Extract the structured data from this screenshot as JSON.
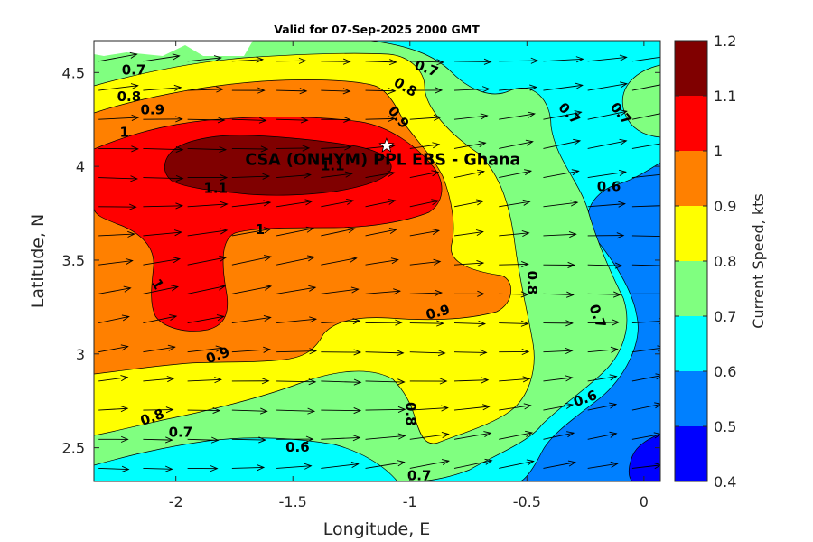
{
  "chart_data": {
    "type": "contour",
    "title": "Valid for 07-Sep-2025 2000 GMT",
    "xlabel": "Longitude, E",
    "ylabel": "Latitude, N",
    "xlim": [
      -2.35,
      0.07
    ],
    "ylim": [
      2.32,
      4.67
    ],
    "xticks": [
      -2,
      -1.5,
      -1,
      -0.5,
      0
    ],
    "xtick_labels": [
      "-2",
      "-1.5",
      "-1",
      "-0.5",
      "0"
    ],
    "yticks": [
      2.5,
      3,
      3.5,
      4,
      4.5
    ],
    "ytick_labels": [
      "2.5",
      "3",
      "3.5",
      "4",
      "4.5"
    ],
    "grid": false,
    "colorbar": {
      "label": "Current Speed, kts",
      "levels": [
        0.4,
        0.5,
        0.6,
        0.7,
        0.8,
        0.9,
        1.0,
        1.1,
        1.2
      ],
      "tick_labels": [
        "0.4",
        "0.5",
        "0.6",
        "0.7",
        "0.8",
        "0.9",
        "1",
        "1.1",
        "1.2"
      ],
      "colors": [
        "#0000ff",
        "#0080ff",
        "#00ffff",
        "#80ff80",
        "#ffff00",
        "#ff8000",
        "#ff0000",
        "#800000"
      ]
    },
    "site": {
      "name": "CSA (ONHYM) PPL EBS - Ghana",
      "lon": -1.1,
      "lat": 4.11
    },
    "contour_labels": [
      {
        "text": "0.7",
        "lon": -2.18,
        "lat": 4.51,
        "angle": 0
      },
      {
        "text": "0.8",
        "lon": -2.2,
        "lat": 4.37,
        "angle": 0
      },
      {
        "text": "0.9",
        "lon": -2.1,
        "lat": 4.3,
        "angle": 0
      },
      {
        "text": "1",
        "lon": -2.22,
        "lat": 4.18,
        "angle": 0
      },
      {
        "text": "1.1",
        "lon": -1.83,
        "lat": 3.88,
        "angle": 0
      },
      {
        "text": "1.1",
        "lon": -1.33,
        "lat": 4.0,
        "angle": 0
      },
      {
        "text": "1",
        "lon": -1.64,
        "lat": 3.66,
        "angle": 0
      },
      {
        "text": "1",
        "lon": -2.08,
        "lat": 3.37,
        "angle": 60
      },
      {
        "text": "0.9",
        "lon": -1.82,
        "lat": 2.99,
        "angle": -20
      },
      {
        "text": "0.8",
        "lon": -2.1,
        "lat": 2.66,
        "angle": -20
      },
      {
        "text": "0.7",
        "lon": -1.98,
        "lat": 2.58,
        "angle": 0
      },
      {
        "text": "0.6",
        "lon": -1.48,
        "lat": 2.5,
        "angle": 0
      },
      {
        "text": "0.7",
        "lon": -0.96,
        "lat": 2.35,
        "angle": 0
      },
      {
        "text": "0.8",
        "lon": -1.0,
        "lat": 2.68,
        "angle": 90
      },
      {
        "text": "0.9",
        "lon": -0.88,
        "lat": 3.22,
        "angle": -15
      },
      {
        "text": "0.8",
        "lon": -0.48,
        "lat": 3.38,
        "angle": 90
      },
      {
        "text": "0.7",
        "lon": -0.2,
        "lat": 3.2,
        "angle": 70
      },
      {
        "text": "0.6",
        "lon": -0.25,
        "lat": 2.76,
        "angle": -20
      },
      {
        "text": "0.6",
        "lon": -0.15,
        "lat": 3.89,
        "angle": 0
      },
      {
        "text": "0.7",
        "lon": -0.32,
        "lat": 4.28,
        "angle": 45
      },
      {
        "text": "0.7",
        "lon": -0.1,
        "lat": 4.28,
        "angle": 50
      },
      {
        "text": "0.7",
        "lon": -0.93,
        "lat": 4.52,
        "angle": 20
      },
      {
        "text": "0.8",
        "lon": -1.02,
        "lat": 4.42,
        "angle": 30
      },
      {
        "text": "0.9",
        "lon": -1.05,
        "lat": 4.26,
        "angle": 50
      }
    ],
    "vector_field": {
      "description": "Current direction arrows, predominantly eastward",
      "lon_step": 0.19,
      "lat_step": 0.155,
      "direction_deg": -5
    }
  }
}
